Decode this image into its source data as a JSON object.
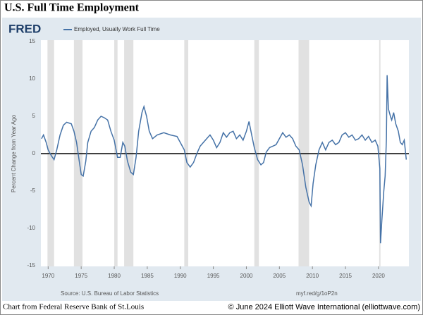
{
  "chart_data": {
    "type": "line",
    "title": "U.S. Full Time Employment",
    "logo": "FRED",
    "y_label": "Percent Change from Year Ago",
    "source": "Source: U.S. Bureau of Labor Statistics",
    "link": "myf.red/g/1oP2n",
    "xlim": [
      1968.9,
      2024.6
    ],
    "xticks": [
      1970,
      1975,
      1980,
      1985,
      1990,
      1995,
      2000,
      2005,
      2010,
      2015,
      2020
    ],
    "ylim": [
      -15,
      15
    ],
    "yticks": [
      -15,
      -10,
      -5,
      0,
      5,
      10,
      15
    ],
    "grid": false,
    "recessions": [
      [
        1969.9,
        1970.9
      ],
      [
        1973.9,
        1975.2
      ],
      [
        1980.0,
        1980.5
      ],
      [
        1981.5,
        1982.9
      ],
      [
        1990.6,
        1991.2
      ],
      [
        2001.2,
        2001.9
      ],
      [
        2007.9,
        2009.5
      ],
      [
        2020.1,
        2020.3
      ]
    ],
    "recession_color": "#e1e1e1",
    "x": [
      1969.0,
      1969.3,
      1969.7,
      1970.0,
      1970.5,
      1970.9,
      1971.3,
      1971.8,
      1972.3,
      1972.8,
      1973.5,
      1973.9,
      1974.3,
      1974.7,
      1975.0,
      1975.3,
      1975.7,
      1976.0,
      1976.5,
      1977.0,
      1977.5,
      1978.0,
      1978.5,
      1979.0,
      1979.5,
      1980.0,
      1980.5,
      1980.9,
      1981.3,
      1981.6,
      1982.0,
      1982.5,
      1982.9,
      1983.3,
      1983.7,
      1984.2,
      1984.5,
      1984.9,
      1985.3,
      1985.8,
      1986.5,
      1987.5,
      1988.5,
      1989.5,
      1990.0,
      1990.6,
      1991.0,
      1991.5,
      1992.0,
      1992.5,
      1993.0,
      1993.5,
      1994.0,
      1994.5,
      1995.0,
      1995.5,
      1996.0,
      1996.5,
      1997.0,
      1997.5,
      1998.0,
      1998.5,
      1999.0,
      1999.5,
      2000.0,
      2000.4,
      2000.8,
      2001.2,
      2001.7,
      2002.2,
      2002.6,
      2003.0,
      2003.5,
      2004.0,
      2004.5,
      2005.0,
      2005.5,
      2006.0,
      2006.5,
      2007.0,
      2007.5,
      2008.0,
      2008.5,
      2009.0,
      2009.5,
      2009.8,
      2010.1,
      2010.5,
      2011.0,
      2011.5,
      2012.0,
      2012.5,
      2013.0,
      2013.5,
      2014.0,
      2014.5,
      2015.0,
      2015.5,
      2016.0,
      2016.5,
      2017.0,
      2017.5,
      2018.0,
      2018.5,
      2019.0,
      2019.5,
      2019.9,
      2020.2,
      2020.3,
      2020.5,
      2020.8,
      2021.0,
      2021.2,
      2021.3,
      2021.5,
      2021.8,
      2022.0,
      2022.3,
      2022.6,
      2023.0,
      2023.3,
      2023.6,
      2023.9,
      2024.2
    ],
    "series": [
      {
        "name": "Employed, Usually Work Full Time",
        "color": "#4572a7",
        "values": [
          2.0,
          2.5,
          1.5,
          0.5,
          -0.3,
          -0.8,
          0.5,
          2.5,
          3.8,
          4.2,
          4.0,
          3.0,
          1.5,
          -1.0,
          -2.8,
          -3.0,
          -1.0,
          1.5,
          3.0,
          3.5,
          4.5,
          5.0,
          4.8,
          4.5,
          3.0,
          1.8,
          -0.5,
          -0.5,
          1.5,
          1.0,
          -1.0,
          -2.5,
          -2.8,
          -0.5,
          3.0,
          5.5,
          6.3,
          5.0,
          3.0,
          2.0,
          2.5,
          2.8,
          2.5,
          2.3,
          1.5,
          0.5,
          -1.2,
          -1.8,
          -1.2,
          0,
          1.0,
          1.5,
          2.0,
          2.5,
          1.8,
          0.8,
          1.5,
          2.8,
          2.2,
          2.8,
          3.0,
          2.0,
          2.5,
          1.8,
          3.0,
          4.3,
          2.5,
          0.8,
          -0.8,
          -1.5,
          -1.2,
          0.2,
          0.8,
          1.0,
          1.2,
          2.0,
          2.8,
          2.2,
          2.5,
          2.0,
          1.0,
          0.5,
          -1.5,
          -4.5,
          -6.5,
          -7.0,
          -4.0,
          -1.5,
          0.5,
          1.5,
          0.5,
          1.5,
          1.8,
          1.2,
          1.5,
          2.5,
          2.8,
          2.2,
          2.5,
          1.8,
          2.0,
          2.5,
          1.8,
          2.3,
          1.5,
          1.8,
          1.0,
          -2.0,
          -12.0,
          -9.0,
          -5.0,
          -3.0,
          2.0,
          10.5,
          6.0,
          5.0,
          4.5,
          5.5,
          4.0,
          3.0,
          1.5,
          1.2,
          1.8,
          -0.8
        ]
      }
    ]
  },
  "footer": {
    "left": "Chart from Federal Reserve Bank of St.Louis",
    "right": "© June 2024 Elliott Wave International (elliottwave.com)"
  }
}
